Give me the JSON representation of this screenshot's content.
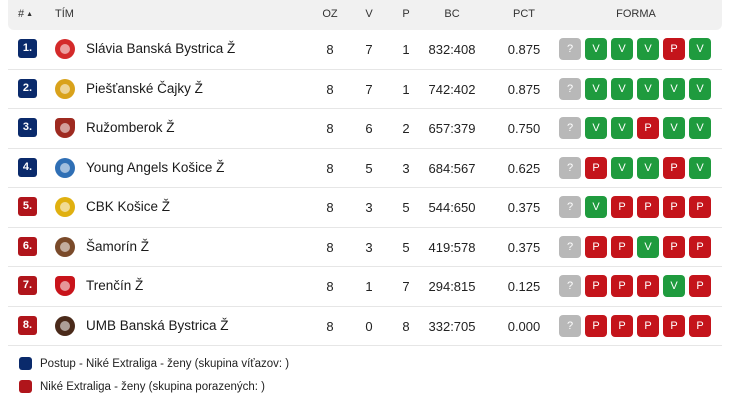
{
  "header": {
    "rank": "#",
    "team": "TÍM",
    "oz": "OZ",
    "v": "V",
    "p": "P",
    "bc": "BC",
    "pct": "PCT",
    "form": "FORMA"
  },
  "colors": {
    "postup": "#0a2a6b",
    "porazeni": "#b0151b",
    "win": "#1f9b3e",
    "loss": "#c4141b",
    "unknown": "#b8b8b8"
  },
  "rows": [
    {
      "rank": "1.",
      "team": "Slávia Banská Bystrica Ž",
      "oz": "8",
      "v": "7",
      "p": "1",
      "bc": "832:408",
      "pct": "0.875",
      "form": [
        "?",
        "V",
        "V",
        "V",
        "P",
        "V"
      ],
      "zone": "postup",
      "logo_color": "#d42a2a",
      "logo_icon": "slavia-logo-icon"
    },
    {
      "rank": "2.",
      "team": "Piešťanské Čajky Ž",
      "oz": "8",
      "v": "7",
      "p": "1",
      "bc": "742:402",
      "pct": "0.875",
      "form": [
        "?",
        "V",
        "V",
        "V",
        "V",
        "V"
      ],
      "zone": "postup",
      "logo_color": "#d9a21b",
      "logo_icon": "cajky-logo-icon"
    },
    {
      "rank": "3.",
      "team": "Ružomberok Ž",
      "oz": "8",
      "v": "6",
      "p": "2",
      "bc": "657:379",
      "pct": "0.750",
      "form": [
        "?",
        "V",
        "V",
        "P",
        "V",
        "V"
      ],
      "zone": "postup",
      "logo_color": "#9e2a20",
      "logo_icon": "ruzomberok-logo-icon"
    },
    {
      "rank": "4.",
      "team": "Young Angels Košice Ž",
      "oz": "8",
      "v": "5",
      "p": "3",
      "bc": "684:567",
      "pct": "0.625",
      "form": [
        "?",
        "P",
        "V",
        "V",
        "P",
        "V"
      ],
      "zone": "postup",
      "logo_color": "#2f6fb5",
      "logo_icon": "young-angels-logo-icon"
    },
    {
      "rank": "5.",
      "team": "CBK Košice Ž",
      "oz": "8",
      "v": "3",
      "p": "5",
      "bc": "544:650",
      "pct": "0.375",
      "form": [
        "?",
        "V",
        "P",
        "P",
        "P",
        "P"
      ],
      "zone": "porazeni",
      "logo_color": "#e0b010",
      "logo_icon": "cbk-logo-icon"
    },
    {
      "rank": "6.",
      "team": "Šamorín Ž",
      "oz": "8",
      "v": "3",
      "p": "5",
      "bc": "419:578",
      "pct": "0.375",
      "form": [
        "?",
        "P",
        "P",
        "V",
        "P",
        "P"
      ],
      "zone": "porazeni",
      "logo_color": "#7a4a2a",
      "logo_icon": "samorin-logo-icon"
    },
    {
      "rank": "7.",
      "team": "Trenčín Ž",
      "oz": "8",
      "v": "1",
      "p": "7",
      "bc": "294:815",
      "pct": "0.125",
      "form": [
        "?",
        "P",
        "P",
        "P",
        "V",
        "P"
      ],
      "zone": "porazeni",
      "logo_color": "#c8141b",
      "logo_icon": "trencin-logo-icon"
    },
    {
      "rank": "8.",
      "team": "UMB Banská Bystrica Ž",
      "oz": "8",
      "v": "0",
      "p": "8",
      "bc": "332:705",
      "pct": "0.000",
      "form": [
        "?",
        "P",
        "P",
        "P",
        "P",
        "P"
      ],
      "zone": "porazeni",
      "logo_color": "#4a2a1a",
      "logo_icon": "umb-logo-icon"
    }
  ],
  "legend": [
    {
      "label": "Postup - Niké Extraliga - ženy (skupina víťazov: )",
      "zone": "postup"
    },
    {
      "label": "Niké Extraliga - ženy (skupina porazených: )",
      "zone": "porazeni"
    }
  ]
}
